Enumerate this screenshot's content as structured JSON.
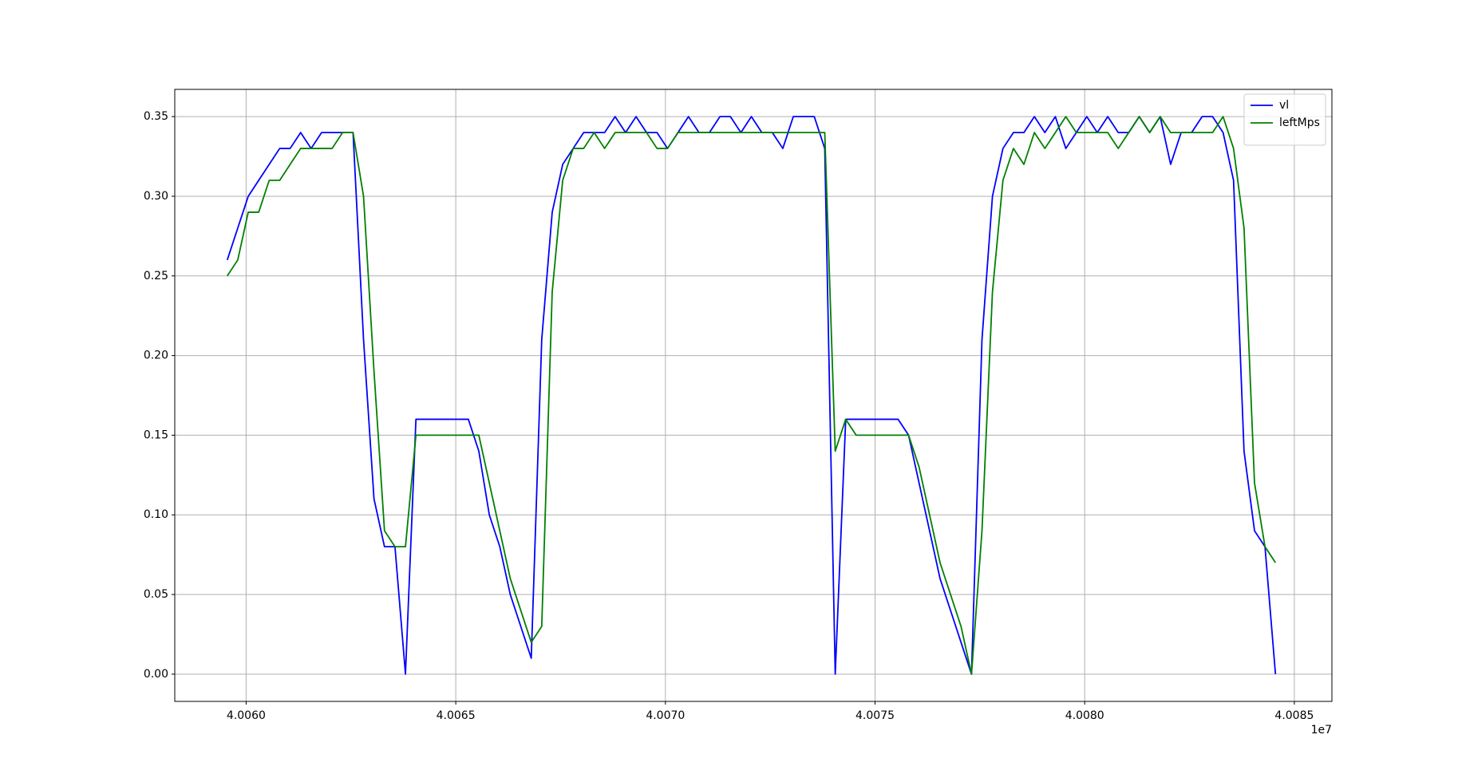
{
  "chart_data": {
    "type": "line",
    "x": [
      40059550,
      40059800,
      40060050,
      40060300,
      40060550,
      40060800,
      40061050,
      40061300,
      40061550,
      40061800,
      40062050,
      40062300,
      40062550,
      40062800,
      40063050,
      40063300,
      40063550,
      40063800,
      40064050,
      40064300,
      40064550,
      40064800,
      40065050,
      40065300,
      40065550,
      40065800,
      40066050,
      40066300,
      40066550,
      40066800,
      40067050,
      40067300,
      40067550,
      40067800,
      40068050,
      40068300,
      40068550,
      40068800,
      40069050,
      40069300,
      40069550,
      40069800,
      40070050,
      40070300,
      40070550,
      40070800,
      40071050,
      40071300,
      40071550,
      40071800,
      40072050,
      40072300,
      40072550,
      40072800,
      40073050,
      40073300,
      40073550,
      40073800,
      40074050,
      40074300,
      40074550,
      40074800,
      40075050,
      40075300,
      40075550,
      40075800,
      40076050,
      40076300,
      40076550,
      40076800,
      40077050,
      40077300,
      40077550,
      40077800,
      40078050,
      40078300,
      40078550,
      40078800,
      40079050,
      40079300,
      40079550,
      40079800,
      40080050,
      40080300,
      40080550,
      40080800,
      40081050,
      40081300,
      40081550,
      40081800,
      40082050,
      40082300,
      40082550,
      40082800,
      40083050,
      40083300,
      40083550,
      40083800,
      40084050,
      40084300,
      40084550
    ],
    "series": [
      {
        "name": "vl",
        "color": "#0000ff",
        "values": [
          0.26,
          0.28,
          0.3,
          0.31,
          0.32,
          0.33,
          0.33,
          0.34,
          0.33,
          0.34,
          0.34,
          0.34,
          0.34,
          0.21,
          0.11,
          0.08,
          0.08,
          0,
          0.16,
          0.16,
          0.16,
          0.16,
          0.16,
          0.16,
          0.14,
          0.1,
          0.08,
          0.05,
          0.03,
          0.01,
          0.21,
          0.29,
          0.32,
          0.33,
          0.34,
          0.34,
          0.34,
          0.35,
          0.34,
          0.35,
          0.34,
          0.34,
          0.33,
          0.34,
          0.35,
          0.34,
          0.34,
          0.35,
          0.35,
          0.34,
          0.35,
          0.34,
          0.34,
          0.33,
          0.35,
          0.35,
          0.35,
          0.33,
          0,
          0.16,
          0.16,
          0.16,
          0.16,
          0.16,
          0.16,
          0.15,
          0.12,
          0.09,
          0.06,
          0.04,
          0.02,
          0,
          0.21,
          0.3,
          0.33,
          0.34,
          0.34,
          0.35,
          0.34,
          0.35,
          0.33,
          0.34,
          0.35,
          0.34,
          0.35,
          0.34,
          0.34,
          0.35,
          0.34,
          0.35,
          0.32,
          0.34,
          0.34,
          0.35,
          0.35,
          0.34,
          0.31,
          0.14,
          0.09,
          0.08,
          0
        ]
      },
      {
        "name": "leftMps",
        "color": "#008000",
        "values": [
          0.25,
          0.26,
          0.29,
          0.29,
          0.31,
          0.31,
          0.32,
          0.33,
          0.33,
          0.33,
          0.33,
          0.34,
          0.34,
          0.3,
          0.19,
          0.09,
          0.08,
          0.08,
          0.15,
          0.15,
          0.15,
          0.15,
          0.15,
          0.15,
          0.15,
          0.12,
          0.09,
          0.06,
          0.04,
          0.02,
          0.03,
          0.24,
          0.31,
          0.33,
          0.33,
          0.34,
          0.33,
          0.34,
          0.34,
          0.34,
          0.34,
          0.33,
          0.33,
          0.34,
          0.34,
          0.34,
          0.34,
          0.34,
          0.34,
          0.34,
          0.34,
          0.34,
          0.34,
          0.34,
          0.34,
          0.34,
          0.34,
          0.34,
          0.14,
          0.16,
          0.15,
          0.15,
          0.15,
          0.15,
          0.15,
          0.15,
          0.13,
          0.1,
          0.07,
          0.05,
          0.03,
          0,
          0.09,
          0.24,
          0.31,
          0.33,
          0.32,
          0.34,
          0.33,
          0.34,
          0.35,
          0.34,
          0.34,
          0.34,
          0.34,
          0.33,
          0.34,
          0.35,
          0.34,
          0.35,
          0.34,
          0.34,
          0.34,
          0.34,
          0.34,
          0.35,
          0.33,
          0.28,
          0.12,
          0.08,
          0.07
        ]
      }
    ],
    "xlim": [
      40058298,
      40085896
    ],
    "xticks": [
      {
        "value": 40060000,
        "label": "4.0060"
      },
      {
        "value": 40065000,
        "label": "4.0065"
      },
      {
        "value": 40070000,
        "label": "4.0070"
      },
      {
        "value": 40075000,
        "label": "4.0075"
      },
      {
        "value": 40080000,
        "label": "4.0080"
      },
      {
        "value": 40085000,
        "label": "4.0085"
      }
    ],
    "x_offset_label": "1e7",
    "ylim": [
      -0.0171,
      0.3671
    ],
    "yticks": [
      {
        "value": 0,
        "label": "0.00"
      },
      {
        "value": 0.05,
        "label": "0.05"
      },
      {
        "value": 0.1,
        "label": "0.10"
      },
      {
        "value": 0.15,
        "label": "0.15"
      },
      {
        "value": 0.2,
        "label": "0.20"
      },
      {
        "value": 0.25,
        "label": "0.25"
      },
      {
        "value": 0.3,
        "label": "0.30"
      },
      {
        "value": 0.35,
        "label": "0.35"
      }
    ],
    "grid": true,
    "legend": "upper right"
  }
}
